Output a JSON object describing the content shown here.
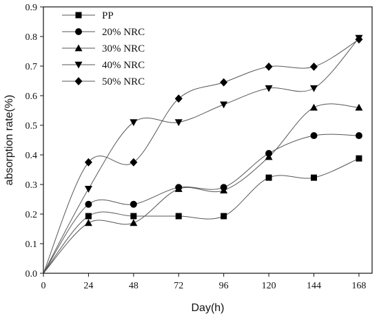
{
  "chart_data": {
    "type": "scatter",
    "title": "",
    "xlabel": "Day(h)",
    "ylabel": "absorption rate(%)",
    "xlim": [
      0,
      175
    ],
    "ylim": [
      0,
      0.9
    ],
    "xticks": [
      0,
      24,
      48,
      72,
      96,
      120,
      144,
      168
    ],
    "yticks": [
      0.0,
      0.1,
      0.2,
      0.3,
      0.4,
      0.5,
      0.6,
      0.7,
      0.8,
      0.9
    ],
    "ytick_labels": [
      "0.0",
      "0.1",
      "0.2",
      "0.3",
      "0.4",
      "0.5",
      "0.6",
      "0.7",
      "0.8",
      "0.9"
    ],
    "grid": false,
    "legend": "top-left",
    "fit_curves": true,
    "x": [
      0,
      24,
      48,
      72,
      96,
      120,
      144,
      168
    ],
    "series": [
      {
        "name": "PP",
        "marker": "square",
        "values": [
          0,
          0.193,
          0.193,
          0.193,
          0.193,
          0.323,
          0.323,
          0.388
        ]
      },
      {
        "name": "20% NRC",
        "marker": "circle",
        "values": [
          0,
          0.233,
          0.233,
          0.29,
          0.29,
          0.405,
          0.465,
          0.465
        ]
      },
      {
        "name": "30% NRC",
        "marker": "triangle-up",
        "values": [
          0,
          0.17,
          0.17,
          0.285,
          0.28,
          0.393,
          0.56,
          0.56
        ]
      },
      {
        "name": "40% NRC",
        "marker": "triangle-down",
        "values": [
          0,
          0.285,
          0.51,
          0.51,
          0.57,
          0.625,
          0.625,
          0.795
        ]
      },
      {
        "name": "50% NRC",
        "marker": "diamond",
        "values": [
          0,
          0.375,
          0.375,
          0.59,
          0.645,
          0.698,
          0.698,
          0.79
        ]
      }
    ]
  }
}
